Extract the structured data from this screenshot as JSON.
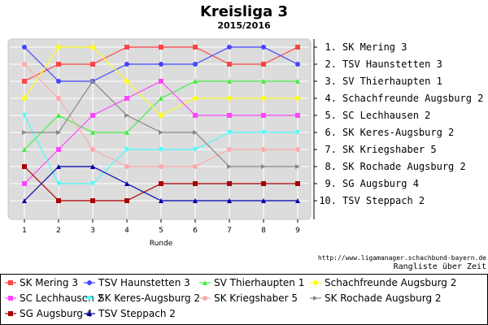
{
  "title": "Kreisliga 3",
  "subtitle": "2015/2016",
  "credit": "http://www.ligamanager.schachbund-bayern.de",
  "caption": "Rangliste über Zeit",
  "chart_data": {
    "type": "line",
    "title": "Kreisliga 3",
    "subtitle": "2015/2016",
    "xlabel": "Runde",
    "ylabel": "",
    "x": [
      1,
      2,
      3,
      4,
      5,
      6,
      7,
      8,
      9
    ],
    "xlim": [
      1,
      9
    ],
    "ylim": [
      1,
      10
    ],
    "y_inverted": true,
    "grid": true,
    "legend_position": "bottom",
    "final_ranking": [
      "1. SK Mering 3",
      "2. TSV Haunstetten 3",
      "3. SV Thierhaupten 1",
      "4. Schachfreunde Augsburg 2",
      "5. SC Lechhausen 2",
      "6. SK Keres-Augsburg 2",
      "7. SK Kriegshaber 5",
      "8. SK Rochade Augsburg 2",
      "9. SG Augsburg 4",
      "10. TSV Steppach 2"
    ],
    "series": [
      {
        "name": "SK Mering 3",
        "color": "#ff4444",
        "marker": "square",
        "values": [
          3,
          2,
          2,
          1,
          1,
          1,
          2,
          2,
          1
        ]
      },
      {
        "name": "TSV Haunstetten 3",
        "color": "#4444ff",
        "marker": "circle",
        "values": [
          1,
          3,
          3,
          2,
          2,
          2,
          1,
          1,
          2
        ]
      },
      {
        "name": "SV Thierhaupten 1",
        "color": "#44ee44",
        "marker": "triangle-up",
        "values": [
          7,
          5,
          6,
          6,
          4,
          3,
          3,
          3,
          3
        ]
      },
      {
        "name": "Schachfreunde Augsburg 2",
        "color": "#ffff22",
        "marker": "diamond",
        "values": [
          4,
          1,
          1,
          3,
          5,
          4,
          4,
          4,
          4
        ]
      },
      {
        "name": "SC Lechhausen 2",
        "color": "#ff44ff",
        "marker": "square",
        "values": [
          9,
          7,
          5,
          4,
          3,
          5,
          5,
          5,
          5
        ]
      },
      {
        "name": "SK Keres-Augsburg 2",
        "color": "#44ffff",
        "marker": "triangle-down",
        "values": [
          5,
          9,
          9,
          7,
          7,
          7,
          6,
          6,
          6
        ]
      },
      {
        "name": "SK Kriegshaber 5",
        "color": "#ffaaaa",
        "marker": "circle",
        "values": [
          2,
          4,
          7,
          8,
          8,
          8,
          7,
          7,
          7
        ]
      },
      {
        "name": "SK Rochade Augsburg 2",
        "color": "#888888",
        "marker": "triangle-right",
        "values": [
          6,
          6,
          3,
          5,
          6,
          6,
          8,
          8,
          8
        ]
      },
      {
        "name": "SG Augsburg 4",
        "color": "#aa0000",
        "marker": "square",
        "values": [
          8,
          10,
          10,
          10,
          9,
          9,
          9,
          9,
          9
        ]
      },
      {
        "name": "TSV Steppach 2",
        "color": "#0000aa",
        "marker": "triangle-up",
        "values": [
          10,
          8,
          8,
          9,
          10,
          10,
          10,
          10,
          10
        ]
      }
    ]
  }
}
